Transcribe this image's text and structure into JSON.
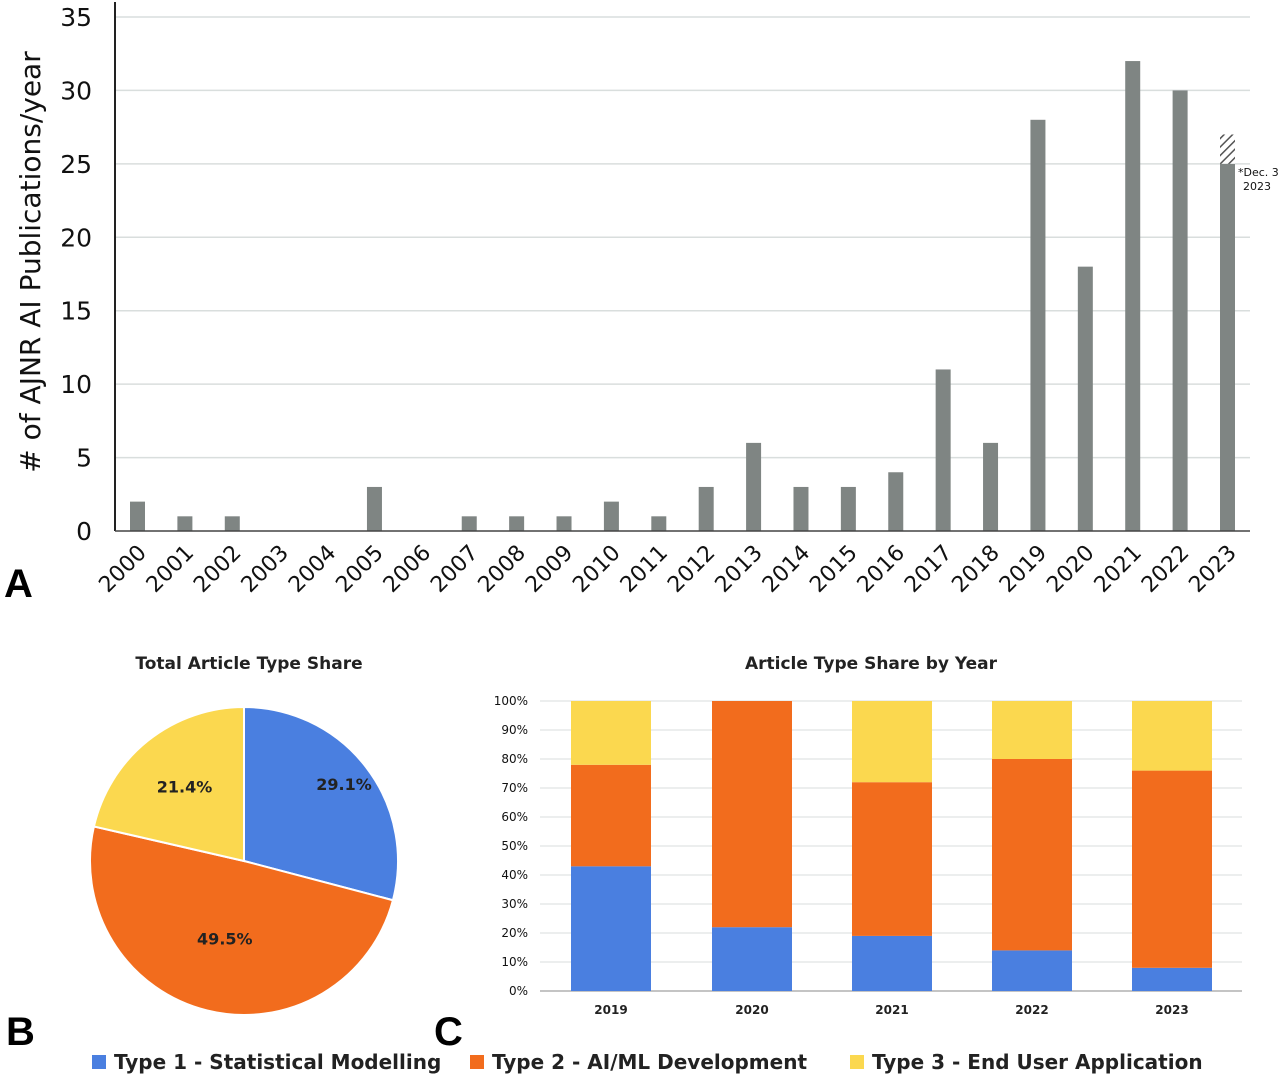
{
  "colors": {
    "bar_grey": "#7f8583",
    "type1_blue": "#4a7fe0",
    "type2_orange": "#f26c1d",
    "type3_yellow": "#fbd84f",
    "grid": "#d9dedd",
    "hatch": "#555555"
  },
  "panel_labels": {
    "a": "A",
    "b": "B",
    "c": "C"
  },
  "legend": [
    {
      "label": "Type 1 - Statistical Modelling",
      "color": "#4a7fe0"
    },
    {
      "label": "Type 2 - AI/ML Development",
      "color": "#f26c1d"
    },
    {
      "label": "Type 3 - End User Application",
      "color": "#fbd84f"
    }
  ],
  "chart_data": [
    {
      "type": "bar",
      "ylabel": "# of AJNR AI Publications/year",
      "ylim": [
        0,
        35
      ],
      "yticks": [
        0,
        5,
        10,
        15,
        20,
        25,
        30,
        35
      ],
      "categories": [
        "2000",
        "2001",
        "2002",
        "2003",
        "2004",
        "2005",
        "2006",
        "2007",
        "2008",
        "2009",
        "2010",
        "2011",
        "2012",
        "2013",
        "2014",
        "2015",
        "2016",
        "2017",
        "2018",
        "2019",
        "2020",
        "2021",
        "2022",
        "2023"
      ],
      "values": [
        2,
        1,
        1,
        0,
        0,
        3,
        0,
        1,
        1,
        1,
        2,
        1,
        3,
        6,
        3,
        3,
        4,
        11,
        6,
        28,
        18,
        32,
        30,
        25
      ],
      "projected_2023": 27,
      "annotation": {
        "line1": "*Dec. 3",
        "line2": "2023"
      },
      "grid": true
    },
    {
      "type": "pie",
      "title": "Total Article Type Share",
      "slices": [
        {
          "name": "Type 1 - Statistical Modelling",
          "value": 29.1,
          "label": "29.1%"
        },
        {
          "name": "Type 2 - AI/ML Development",
          "value": 49.5,
          "label": "49.5%"
        },
        {
          "name": "Type 3 - End User Application",
          "value": 21.4,
          "label": "21.4%"
        }
      ]
    },
    {
      "type": "bar",
      "stacked": true,
      "title": "Article Type Share by Year",
      "categories": [
        "2019",
        "2020",
        "2021",
        "2022",
        "2023"
      ],
      "ylim": [
        0,
        100
      ],
      "yticks": [
        "0%",
        "10%",
        "20%",
        "30%",
        "40%",
        "50%",
        "60%",
        "70%",
        "80%",
        "90%",
        "100%"
      ],
      "series": [
        {
          "name": "Type 1 - Statistical Modelling",
          "values": [
            43,
            22,
            19,
            14,
            8
          ]
        },
        {
          "name": "Type 2 - AI/ML Development",
          "values": [
            35,
            78,
            53,
            66,
            68
          ]
        },
        {
          "name": "Type 3 - End User Application",
          "values": [
            22,
            0,
            28,
            20,
            24
          ]
        }
      ],
      "grid": true
    }
  ]
}
